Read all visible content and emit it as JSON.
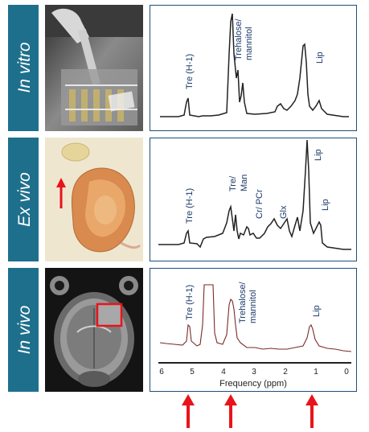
{
  "figure": {
    "rows": [
      {
        "label": "In vitro",
        "photo_alt": "tubes-photo",
        "peaks": [
          "Tre (H-1)",
          "Trehalose/",
          "mannitol",
          "Lip"
        ]
      },
      {
        "label": "Ex vivo",
        "photo_alt": "tissue-photo",
        "peaks": [
          "Tre (H-1)",
          "Tre/",
          "Man",
          "Cr/ PCr",
          "Glx",
          "Lip",
          "Lip"
        ]
      },
      {
        "label": "In vivo",
        "photo_alt": "mri-photo",
        "peaks": [
          "Tre (H-1)",
          "Trehalose/",
          "mannitol",
          "Lip"
        ]
      }
    ],
    "axis": {
      "title": "Frequency (ppm)",
      "ticks": [
        "6",
        "5",
        "4",
        "3",
        "2",
        "1",
        "0"
      ]
    },
    "arrow_color": "#e8141b",
    "label_bg": "#1e6f8c",
    "spectrum_color_vivo": "#7a2a2a"
  }
}
